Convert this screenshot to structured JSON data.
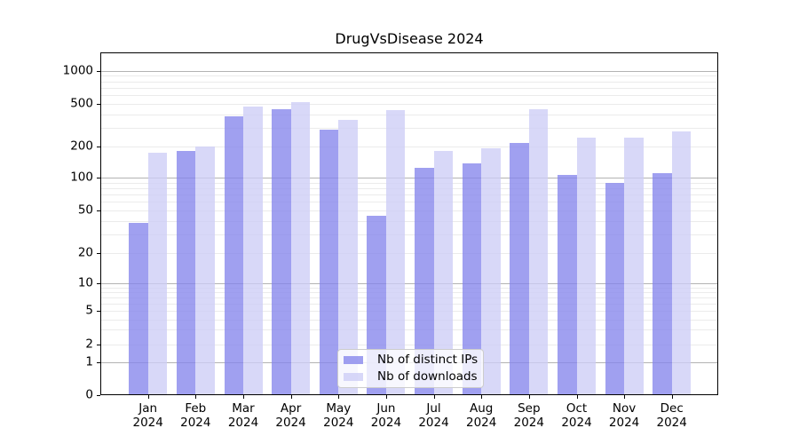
{
  "title": "DrugVsDisease 2024",
  "legend": {
    "items": [
      {
        "label": "Nb of distinct IPs"
      },
      {
        "label": "Nb of downloads"
      }
    ]
  },
  "colors": {
    "ips_bar": "#8585ec",
    "downloads_bar": "#cdcdf6",
    "bar_alpha": 0.78,
    "grid_major": "#b3b3b3",
    "grid_minor": "#ebebeb",
    "spine": "#000000",
    "legend_border": "#cccccc",
    "text": "#000000"
  },
  "chart_data": {
    "type": "bar",
    "title": "DrugVsDisease 2024",
    "categories": [
      "Jan 2024",
      "Feb 2024",
      "Mar 2024",
      "Apr 2024",
      "May 2024",
      "Jun 2024",
      "Jul 2024",
      "Aug 2024",
      "Sep 2024",
      "Oct 2024",
      "Nov 2024",
      "Dec 2024"
    ],
    "series": [
      {
        "name": "Nb of distinct IPs",
        "values": [
          38,
          180,
          380,
          450,
          285,
          45,
          125,
          137,
          215,
          106,
          90,
          111
        ]
      },
      {
        "name": "Nb of downloads",
        "values": [
          175,
          200,
          475,
          515,
          355,
          440,
          182,
          190,
          450,
          240,
          243,
          276
        ]
      }
    ],
    "xlabel": "",
    "ylabel": "",
    "yscale": "symlog",
    "yticks": [
      0,
      1,
      2,
      5,
      10,
      20,
      50,
      100,
      200,
      500,
      1000
    ],
    "ylim": [
      0,
      1500
    ],
    "grid": "horizontal, major and minor",
    "legend_position": "lower center, inside axes"
  }
}
